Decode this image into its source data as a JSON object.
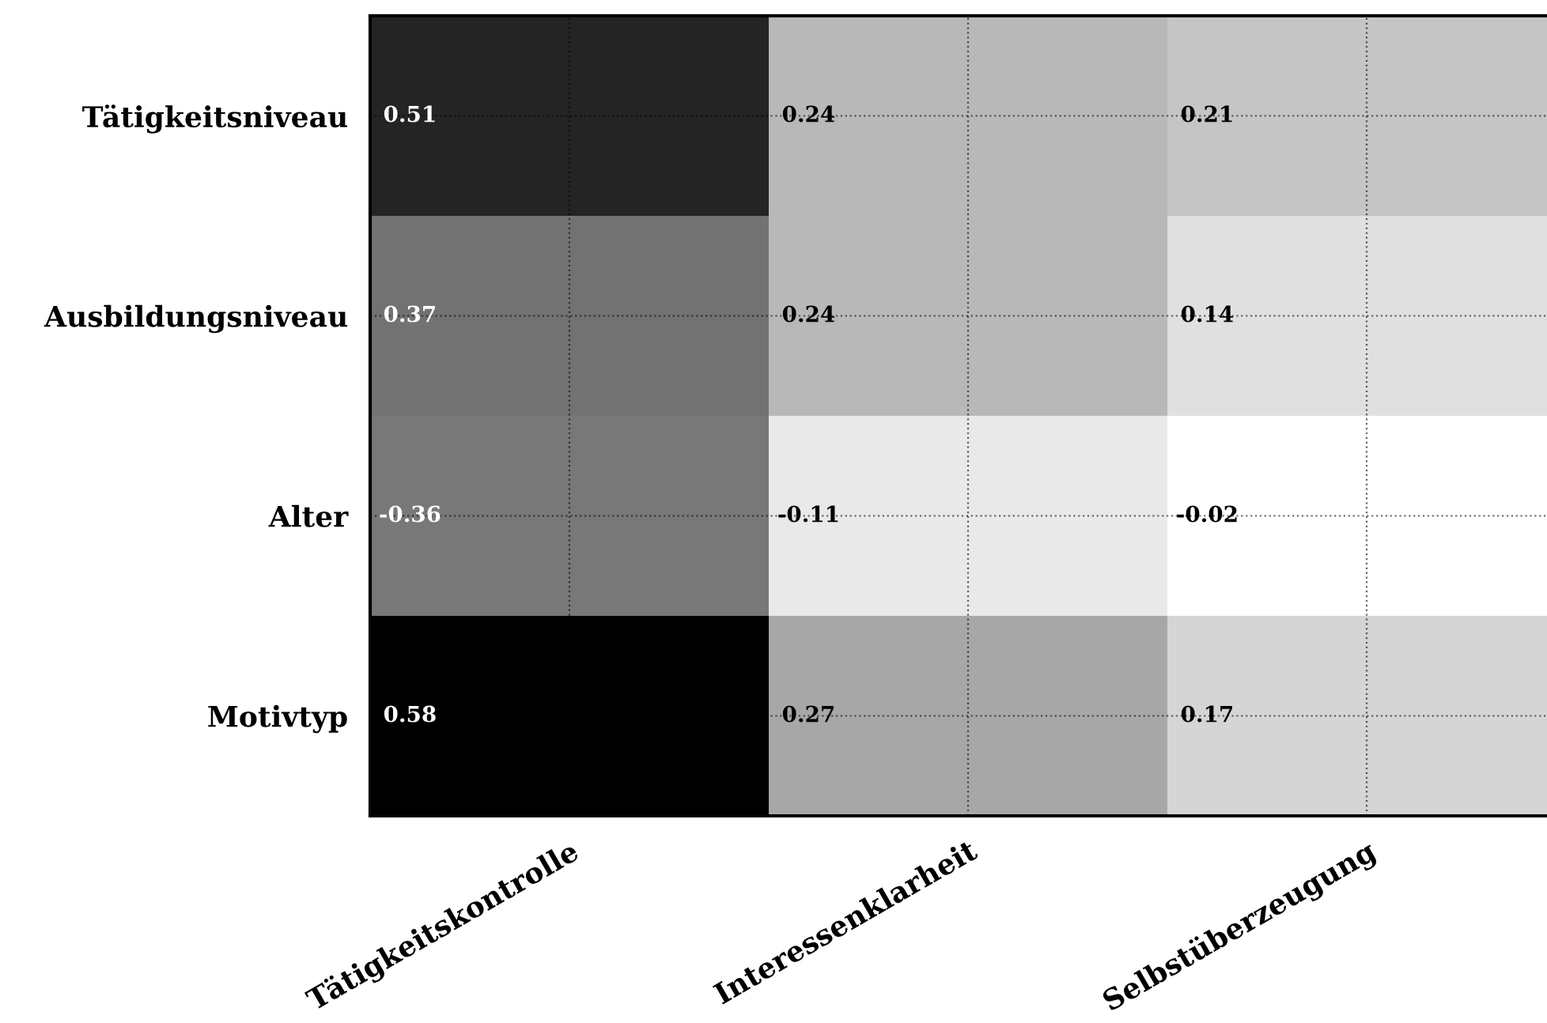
{
  "chart_data": {
    "type": "heatmap",
    "categories": [
      "Tätigkeitskontrolle",
      "Interessenklarheit",
      "Selbstüberzeugung"
    ],
    "y_categories": [
      "Tätigkeitsniveau",
      "Ausbildungsniveau",
      "Alter",
      "Motivtyp"
    ],
    "cells": [
      [
        0.51,
        0.24,
        0.21
      ],
      [
        0.37,
        0.24,
        0.14
      ],
      [
        -0.36,
        -0.11,
        -0.02
      ],
      [
        0.58,
        0.27,
        0.17
      ]
    ],
    "data_labels": true,
    "grid": true
  }
}
